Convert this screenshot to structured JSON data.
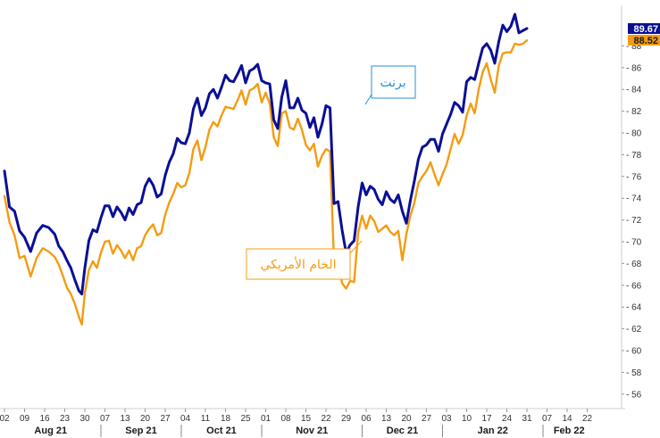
{
  "chart_data": {
    "type": "line",
    "x_ticks": [
      "02",
      "09",
      "16",
      "23",
      "30",
      "07",
      "13",
      "20",
      "27",
      "04",
      "11",
      "18",
      "25",
      "01",
      "08",
      "15",
      "22",
      "29",
      "06",
      "13",
      "20",
      "27",
      "03",
      "10",
      "17",
      "24",
      "31",
      "07",
      "14",
      "22"
    ],
    "months": [
      "Aug 21",
      "Sep 21",
      "Oct 21",
      "Nov 21",
      "Dec 21",
      "Jan 22",
      "Feb 22"
    ],
    "y_ticks": [
      56,
      58,
      60,
      62,
      64,
      66,
      68,
      70,
      72,
      74,
      76,
      78,
      80,
      82,
      84,
      86,
      88
    ],
    "ylim": [
      55,
      91
    ],
    "x_range": [
      0,
      29
    ],
    "grid": false,
    "series": [
      {
        "name": "برنت",
        "color": "#0a0f96",
        "last_value": "89.67",
        "points": [
          [
            0,
            76.5
          ],
          [
            0.25,
            73.2
          ],
          [
            0.5,
            72.8
          ],
          [
            0.75,
            71
          ],
          [
            1,
            70.4
          ],
          [
            1.3,
            69.1
          ],
          [
            1.6,
            70.8
          ],
          [
            1.9,
            71.5
          ],
          [
            2.2,
            71.3
          ],
          [
            2.5,
            70.7
          ],
          [
            2.7,
            69.6
          ],
          [
            2.9,
            69.1
          ],
          [
            3.1,
            68.3
          ],
          [
            3.3,
            67.6
          ],
          [
            3.5,
            66.5
          ],
          [
            3.7,
            65.5
          ],
          [
            3.85,
            65.2
          ],
          [
            4.0,
            67.6
          ],
          [
            4.2,
            70.1
          ],
          [
            4.4,
            71.1
          ],
          [
            4.6,
            70.9
          ],
          [
            4.8,
            72.2
          ],
          [
            5.0,
            73.3
          ],
          [
            5.2,
            73.3
          ],
          [
            5.4,
            72.3
          ],
          [
            5.6,
            73.2
          ],
          [
            5.8,
            72.7
          ],
          [
            6.0,
            72.0
          ],
          [
            6.2,
            73.1
          ],
          [
            6.4,
            72.5
          ],
          [
            6.6,
            73.4
          ],
          [
            6.8,
            73.6
          ],
          [
            7.0,
            75.1
          ],
          [
            7.2,
            75.8
          ],
          [
            7.4,
            75.2
          ],
          [
            7.6,
            74.1
          ],
          [
            7.8,
            74.4
          ],
          [
            8.0,
            76.1
          ],
          [
            8.2,
            77.3
          ],
          [
            8.4,
            78.1
          ],
          [
            8.6,
            79.5
          ],
          [
            8.8,
            79.1
          ],
          [
            9.0,
            79.0
          ],
          [
            9.2,
            80.0
          ],
          [
            9.4,
            82.2
          ],
          [
            9.6,
            83.2
          ],
          [
            9.8,
            81.6
          ],
          [
            10.0,
            82.3
          ],
          [
            10.2,
            83.6
          ],
          [
            10.4,
            84.0
          ],
          [
            10.6,
            83.2
          ],
          [
            10.8,
            84.2
          ],
          [
            11.0,
            85.3
          ],
          [
            11.2,
            84.8
          ],
          [
            11.4,
            84.7
          ],
          [
            11.6,
            85.4
          ],
          [
            11.8,
            86.2
          ],
          [
            12.0,
            84.6
          ],
          [
            12.2,
            85.7
          ],
          [
            12.4,
            85.9
          ],
          [
            12.6,
            86.3
          ],
          [
            12.8,
            84.8
          ],
          [
            13.0,
            84.6
          ],
          [
            13.2,
            84.5
          ],
          [
            13.4,
            81.2
          ],
          [
            13.6,
            80.4
          ],
          [
            13.8,
            83.3
          ],
          [
            14.0,
            84.8
          ],
          [
            14.2,
            82.3
          ],
          [
            14.4,
            82.3
          ],
          [
            14.6,
            83.2
          ],
          [
            14.8,
            82.1
          ],
          [
            15.0,
            81.8
          ],
          [
            15.2,
            80.5
          ],
          [
            15.4,
            81.4
          ],
          [
            15.6,
            79.6
          ],
          [
            15.8,
            80.8
          ],
          [
            16.0,
            82.5
          ],
          [
            16.2,
            82.3
          ],
          [
            16.4,
            73.5
          ],
          [
            16.6,
            73.7
          ],
          [
            16.8,
            71.1
          ],
          [
            17.0,
            69.0
          ],
          [
            17.2,
            69.7
          ],
          [
            17.4,
            70.1
          ],
          [
            17.6,
            73.2
          ],
          [
            17.8,
            75.4
          ],
          [
            18.0,
            74.3
          ],
          [
            18.2,
            75.1
          ],
          [
            18.4,
            74.8
          ],
          [
            18.6,
            73.9
          ],
          [
            18.8,
            73.4
          ],
          [
            19.0,
            74.6
          ],
          [
            19.2,
            73.9
          ],
          [
            19.4,
            73.6
          ],
          [
            19.6,
            74.3
          ],
          [
            19.8,
            72.8
          ],
          [
            20.0,
            71.7
          ],
          [
            20.2,
            73.8
          ],
          [
            20.4,
            75.6
          ],
          [
            20.6,
            77.6
          ],
          [
            20.8,
            78.7
          ],
          [
            21.0,
            78.9
          ],
          [
            21.2,
            79.4
          ],
          [
            21.4,
            79.4
          ],
          [
            21.6,
            78.3
          ],
          [
            21.8,
            79.9
          ],
          [
            22.0,
            80.8
          ],
          [
            22.2,
            81.7
          ],
          [
            22.4,
            82.8
          ],
          [
            22.6,
            82.5
          ],
          [
            22.8,
            81.9
          ],
          [
            23.0,
            84.7
          ],
          [
            23.2,
            85.1
          ],
          [
            23.4,
            84.9
          ],
          [
            23.6,
            86.4
          ],
          [
            23.8,
            87.8
          ],
          [
            24.0,
            88.2
          ],
          [
            24.2,
            87.6
          ],
          [
            24.4,
            86.4
          ],
          [
            24.6,
            88.4
          ],
          [
            24.8,
            89.9
          ],
          [
            25.0,
            89.3
          ],
          [
            25.2,
            89.8
          ],
          [
            25.4,
            90.9
          ],
          [
            25.6,
            89.2
          ],
          [
            25.8,
            89.4
          ],
          [
            26.0,
            89.6
          ]
        ]
      },
      {
        "name": "الخام الأمريكي",
        "color": "#f39c12",
        "last_value": "88.52",
        "points": [
          [
            0,
            74.2
          ],
          [
            0.25,
            71.8
          ],
          [
            0.5,
            70.6
          ],
          [
            0.75,
            68.5
          ],
          [
            1,
            68.7
          ],
          [
            1.3,
            66.8
          ],
          [
            1.6,
            68.5
          ],
          [
            1.9,
            69.4
          ],
          [
            2.2,
            69.1
          ],
          [
            2.5,
            68.6
          ],
          [
            2.7,
            67.9
          ],
          [
            2.9,
            66.9
          ],
          [
            3.1,
            65.8
          ],
          [
            3.3,
            65.2
          ],
          [
            3.5,
            64.3
          ],
          [
            3.7,
            63.1
          ],
          [
            3.85,
            62.4
          ],
          [
            4.0,
            65.3
          ],
          [
            4.2,
            67.4
          ],
          [
            4.4,
            68.2
          ],
          [
            4.6,
            67.6
          ],
          [
            4.8,
            69.0
          ],
          [
            5.0,
            70.0
          ],
          [
            5.2,
            70.1
          ],
          [
            5.4,
            68.9
          ],
          [
            5.6,
            69.7
          ],
          [
            5.8,
            69.2
          ],
          [
            6.0,
            68.5
          ],
          [
            6.2,
            69.2
          ],
          [
            6.4,
            68.3
          ],
          [
            6.6,
            69.4
          ],
          [
            6.8,
            69.6
          ],
          [
            7.0,
            70.6
          ],
          [
            7.2,
            71.2
          ],
          [
            7.4,
            71.6
          ],
          [
            7.6,
            70.6
          ],
          [
            7.8,
            70.8
          ],
          [
            8.0,
            72.5
          ],
          [
            8.2,
            73.6
          ],
          [
            8.4,
            74.4
          ],
          [
            8.6,
            75.4
          ],
          [
            8.8,
            75.0
          ],
          [
            9.0,
            75.2
          ],
          [
            9.2,
            76.3
          ],
          [
            9.4,
            78.5
          ],
          [
            9.6,
            79.3
          ],
          [
            9.8,
            77.5
          ],
          [
            10.0,
            78.7
          ],
          [
            10.2,
            80.3
          ],
          [
            10.4,
            81.0
          ],
          [
            10.6,
            80.6
          ],
          [
            10.8,
            81.6
          ],
          [
            11.0,
            82.4
          ],
          [
            11.2,
            82.3
          ],
          [
            11.4,
            82.2
          ],
          [
            11.6,
            83.0
          ],
          [
            11.8,
            83.9
          ],
          [
            12.0,
            82.6
          ],
          [
            12.2,
            83.9
          ],
          [
            12.4,
            84.1
          ],
          [
            12.6,
            84.5
          ],
          [
            12.8,
            82.8
          ],
          [
            13.0,
            83.7
          ],
          [
            13.2,
            82.7
          ],
          [
            13.4,
            79.6
          ],
          [
            13.6,
            78.8
          ],
          [
            13.8,
            81.8
          ],
          [
            14.0,
            82.0
          ],
          [
            14.2,
            80.5
          ],
          [
            14.4,
            80.3
          ],
          [
            14.6,
            81.3
          ],
          [
            14.8,
            80.3
          ],
          [
            15.0,
            78.9
          ],
          [
            15.2,
            78.4
          ],
          [
            15.4,
            79.0
          ],
          [
            15.6,
            76.9
          ],
          [
            15.8,
            77.9
          ],
          [
            16.0,
            78.5
          ],
          [
            16.2,
            78.3
          ],
          [
            16.4,
            68.1
          ],
          [
            16.6,
            68.6
          ],
          [
            16.8,
            66.2
          ],
          [
            17.0,
            65.7
          ],
          [
            17.2,
            66.4
          ],
          [
            17.4,
            66.3
          ],
          [
            17.6,
            70.8
          ],
          [
            17.8,
            72.4
          ],
          [
            18.0,
            71.2
          ],
          [
            18.2,
            72.4
          ],
          [
            18.4,
            71.9
          ],
          [
            18.6,
            70.9
          ],
          [
            18.8,
            71.2
          ],
          [
            19.0,
            71.5
          ],
          [
            19.2,
            70.9
          ],
          [
            19.4,
            70.6
          ],
          [
            19.6,
            71.0
          ],
          [
            19.8,
            68.3
          ],
          [
            20.0,
            70.7
          ],
          [
            20.2,
            72.4
          ],
          [
            20.4,
            73.6
          ],
          [
            20.6,
            75.4
          ],
          [
            20.8,
            76.0
          ],
          [
            21.0,
            76.5
          ],
          [
            21.2,
            77.3
          ],
          [
            21.4,
            76.2
          ],
          [
            21.6,
            75.2
          ],
          [
            21.8,
            76.2
          ],
          [
            22.0,
            77.1
          ],
          [
            22.2,
            78.5
          ],
          [
            22.4,
            79.9
          ],
          [
            22.6,
            79.0
          ],
          [
            22.8,
            79.8
          ],
          [
            23.0,
            81.6
          ],
          [
            23.2,
            82.7
          ],
          [
            23.4,
            81.8
          ],
          [
            23.6,
            84.0
          ],
          [
            23.8,
            85.6
          ],
          [
            24.0,
            86.4
          ],
          [
            24.2,
            84.9
          ],
          [
            24.4,
            83.7
          ],
          [
            24.6,
            86.2
          ],
          [
            24.8,
            87.3
          ],
          [
            25.0,
            87.4
          ],
          [
            25.2,
            87.4
          ],
          [
            25.4,
            88.2
          ],
          [
            25.6,
            88.1
          ],
          [
            25.8,
            88.2
          ],
          [
            26.0,
            88.5
          ]
        ]
      }
    ],
    "annotations": [
      {
        "text": "برنت",
        "series": "برنت",
        "color": "#2a8fd6",
        "border": "#2a8fd6"
      },
      {
        "text": "الخام الأمريكي",
        "series": "الخام الأمريكي",
        "color": "#f39c12",
        "border": "#f39c12"
      }
    ]
  }
}
